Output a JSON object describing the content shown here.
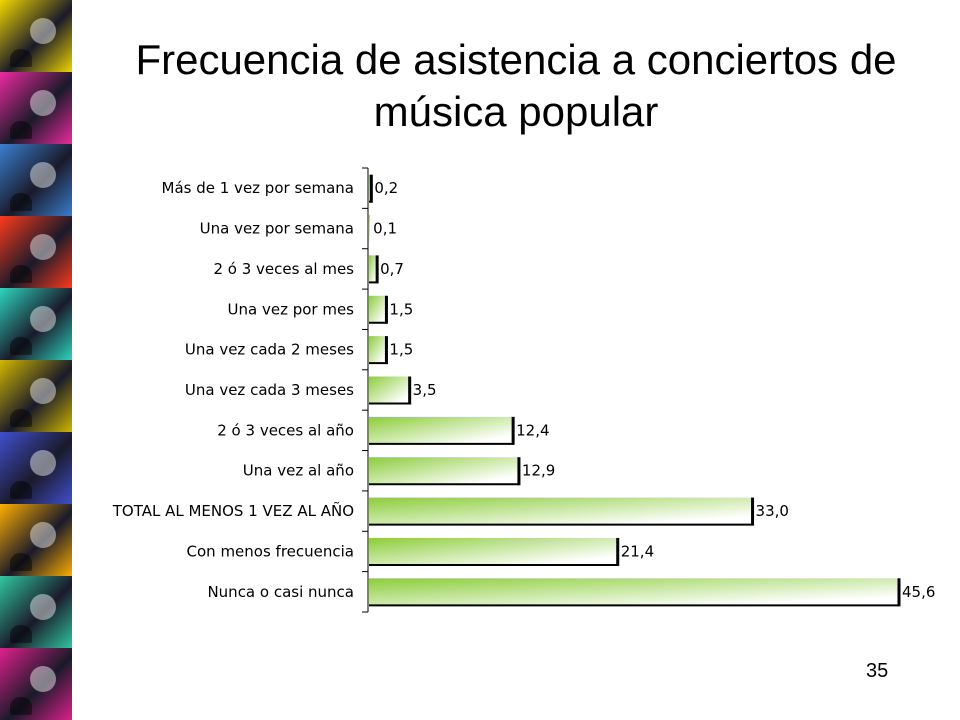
{
  "slide": {
    "title": "Frecuencia de asistencia a conciertos de música popular",
    "page_number": "35"
  },
  "colors": {
    "bar_green": "#8ccc3c",
    "bar_white": "#ffffff",
    "bar_shadow": "#000000",
    "strip_tiles": [
      "#f2d700",
      "#ee2aa0",
      "#3a7fd0",
      "#ff3a1a",
      "#2dd6c0",
      "#d2b800",
      "#4050d0",
      "#ffb000",
      "#30c8a0",
      "#e0208c"
    ]
  },
  "chart_data": {
    "type": "bar",
    "orientation": "horizontal",
    "categories": [
      "Más de 1 vez por semana",
      "Una vez por semana",
      "2 ó 3 veces al mes",
      "Una vez por mes",
      "Una vez cada 2 meses",
      "Una vez cada 3 meses",
      "2 ó 3 veces al año",
      "Una vez al año",
      "TOTAL AL MENOS 1 VEZ AL AÑO",
      "Con menos frecuencia",
      "Nunca o casi  nunca"
    ],
    "values": [
      0.2,
      0.1,
      0.7,
      1.5,
      1.5,
      3.5,
      12.4,
      12.9,
      33.0,
      21.4,
      45.6
    ],
    "value_labels": [
      "0,2",
      "0,1",
      "0,7",
      "1,5",
      "1,5",
      "3,5",
      "12,4",
      "12,9",
      "33,0",
      "21,4",
      "45,6"
    ],
    "xlim": [
      0,
      45.6
    ],
    "grid": false,
    "legend": "none"
  }
}
